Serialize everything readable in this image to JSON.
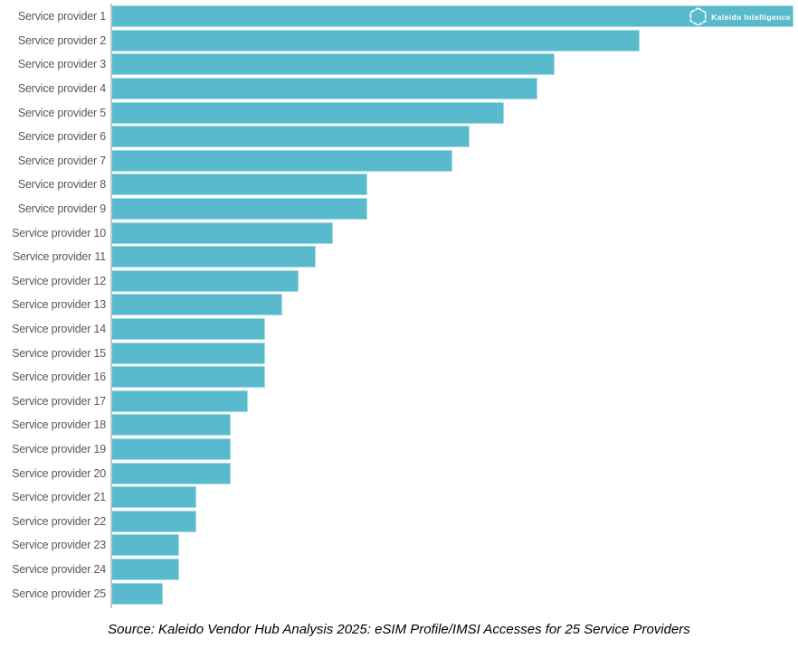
{
  "chart_data": {
    "type": "bar",
    "orientation": "horizontal",
    "title": "",
    "xlabel": "",
    "ylabel": "",
    "xlim": [
      0,
      40
    ],
    "grid": false,
    "legend": false,
    "axis_value_labels_visible": false,
    "categories": [
      "Service provider 1",
      "Service provider 2",
      "Service provider 3",
      "Service provider 4",
      "Service provider 5",
      "Service provider 6",
      "Service provider 7",
      "Service provider 8",
      "Service provider 9",
      "Service provider 10",
      "Service provider 11",
      "Service provider 12",
      "Service provider 13",
      "Service provider 14",
      "Service provider 15",
      "Service provider 16",
      "Service provider 17",
      "Service provider 18",
      "Service provider 19",
      "Service provider 20",
      "Service provider 21",
      "Service provider 22",
      "Service provider 23",
      "Service provider 24",
      "Service provider 25"
    ],
    "values": [
      40,
      31,
      26,
      25,
      23,
      21,
      20,
      15,
      15,
      13,
      12,
      11,
      10,
      9,
      9,
      9,
      8,
      7,
      7,
      7,
      5,
      5,
      4,
      4,
      3
    ],
    "values_note": "Relative units estimated from bar lengths; no numeric axis is shown. Longest bar = 40 units = full chart width."
  },
  "logo": {
    "text": "Kaleido Intelligence",
    "icon": "hexagon-outline"
  },
  "caption": {
    "text": "Source: Kaleido Vendor Hub Analysis 2025: eSIM Profile/IMSI Accesses for 25 Service Providers"
  },
  "colors": {
    "bar_fill": "#5ABACD",
    "bar_border": "rgba(255,255,255,0.45)",
    "label_text": "#595959",
    "axis_line": "#C4C4C4",
    "caption_text": "#000000",
    "logo_text": "#FFFFFF",
    "background": "#FFFFFF"
  }
}
